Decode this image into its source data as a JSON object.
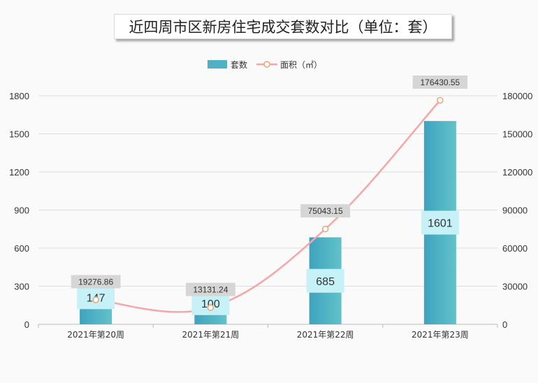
{
  "title": "近四周市区新房住宅成交套数对比（单位：套）",
  "colors": {
    "bar": "#4fb0c6",
    "bar_label_bg": "#c6f1f6",
    "line": "#f4a6a8",
    "point_fill": "#ffffff",
    "point_stroke": "#f0a36f",
    "line_label_bg": "#d6d6d6",
    "grid": "#dddddd",
    "axis_text": "#333333"
  },
  "chart_data": {
    "type": "bar",
    "categories": [
      "2021年第20周",
      "2021年第21周",
      "2021年第22周",
      "2021年第23周"
    ],
    "series": [
      {
        "name": "套数",
        "type": "bar",
        "axis": "left",
        "values": [
          147,
          100,
          685,
          1601
        ],
        "labels": [
          "147",
          "100",
          "685",
          "1601"
        ]
      },
      {
        "name": "面积（㎡）",
        "type": "line",
        "axis": "right",
        "values": [
          19276.86,
          13131.24,
          75043.15,
          176430.55
        ],
        "labels": [
          "19276.86",
          "13131.24",
          "75043.15",
          "176430.55"
        ]
      }
    ],
    "y_left": {
      "min": 0,
      "max": 1800,
      "ticks": [
        "0",
        "300",
        "600",
        "900",
        "1200",
        "1500",
        "1800"
      ]
    },
    "y_right": {
      "min": 0,
      "max": 180000,
      "ticks": [
        "0",
        "30000",
        "60000",
        "90000",
        "120000",
        "150000",
        "180000"
      ]
    },
    "legend_position": "top-center",
    "grid": true
  }
}
